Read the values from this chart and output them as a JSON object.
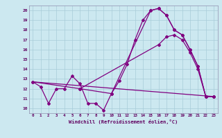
{
  "title": "",
  "xlabel": "Windchill (Refroidissement éolien,°C)",
  "ylabel": "",
  "bg_color": "#cce8f0",
  "line_color": "#800080",
  "grid_color": "#a8ccd8",
  "xlim": [
    -0.5,
    23.5
  ],
  "ylim": [
    9.5,
    20.5
  ],
  "yticks": [
    10,
    11,
    12,
    13,
    14,
    15,
    16,
    17,
    18,
    19,
    20
  ],
  "xticks": [
    0,
    1,
    2,
    3,
    4,
    5,
    6,
    7,
    8,
    9,
    10,
    11,
    12,
    13,
    14,
    15,
    16,
    17,
    18,
    19,
    20,
    21,
    22,
    23
  ],
  "series1_x": [
    0,
    1,
    2,
    3,
    4,
    5,
    6,
    7,
    8,
    9,
    10,
    11,
    12,
    13,
    14,
    15,
    16,
    17,
    18,
    19,
    20,
    21,
    22,
    23
  ],
  "series1_y": [
    12.7,
    12.2,
    10.5,
    12.0,
    12.0,
    13.3,
    12.5,
    10.5,
    10.5,
    9.8,
    11.5,
    12.8,
    14.5,
    17.0,
    19.0,
    20.0,
    20.2,
    19.5,
    18.0,
    17.5,
    16.0,
    14.3,
    11.2,
    11.2
  ],
  "series2_x": [
    0,
    6,
    10,
    15,
    16,
    17,
    18,
    19,
    20,
    21,
    22,
    23
  ],
  "series2_y": [
    12.7,
    12.0,
    11.5,
    20.0,
    20.2,
    19.5,
    18.0,
    17.5,
    16.0,
    14.3,
    11.2,
    11.2
  ],
  "series3_x": [
    0,
    23
  ],
  "series3_y": [
    12.7,
    11.2
  ],
  "series4_x": [
    6,
    16,
    17,
    18,
    19,
    20,
    21,
    22,
    23
  ],
  "series4_y": [
    12.0,
    16.5,
    17.3,
    17.5,
    17.0,
    15.7,
    14.0,
    11.2,
    11.2
  ]
}
